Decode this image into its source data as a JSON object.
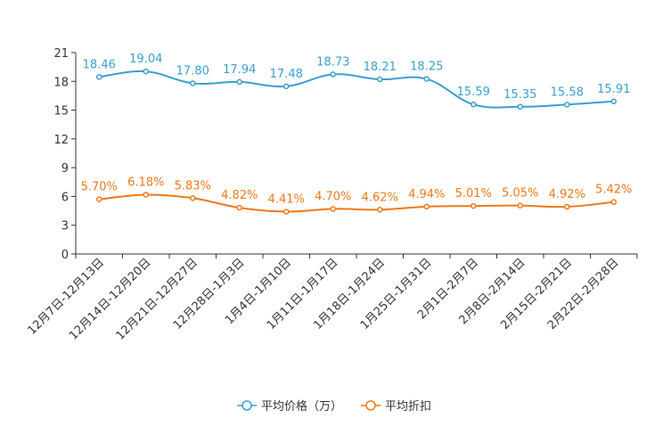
{
  "chart_data": {
    "type": "line",
    "categories": [
      "12月7日-12月13日",
      "12月14日-12月20日",
      "12月21日-12月27日",
      "12月28日-1月3日",
      "1月4日-1月10日",
      "1月11日-1月17日",
      "1月18日-1月24日",
      "1月25日-1月31日",
      "2月1日-2月7日",
      "2月8日-2月14日",
      "2月15日-2月21日",
      "2月22日-2月28日"
    ],
    "y_ticks": [
      "0",
      "3",
      "6",
      "9",
      "12",
      "15",
      "18",
      "21"
    ],
    "ylim": [
      0,
      21
    ],
    "series": [
      {
        "name": "平均价格（万）",
        "color": "#3a9fd0",
        "values": [
          18.46,
          19.04,
          17.8,
          17.94,
          17.48,
          18.73,
          18.21,
          18.25,
          15.59,
          15.35,
          15.58,
          15.91
        ],
        "labels": [
          "18.46",
          "19.04",
          "17.80",
          "17.94",
          "17.48",
          "18.73",
          "18.21",
          "18.25",
          "15.59",
          "15.35",
          "15.58",
          "15.91"
        ]
      },
      {
        "name": "平均折扣",
        "color": "#f07818",
        "values": [
          5.7,
          6.18,
          5.83,
          4.82,
          4.41,
          4.7,
          4.62,
          4.94,
          5.01,
          5.05,
          4.92,
          5.42
        ],
        "labels": [
          "5.70%",
          "6.18%",
          "5.83%",
          "4.82%",
          "4.41%",
          "4.70%",
          "4.62%",
          "4.94%",
          "5.01%",
          "5.05%",
          "4.92%",
          "5.42%"
        ]
      }
    ],
    "legend": {
      "position": "bottom-center"
    }
  }
}
